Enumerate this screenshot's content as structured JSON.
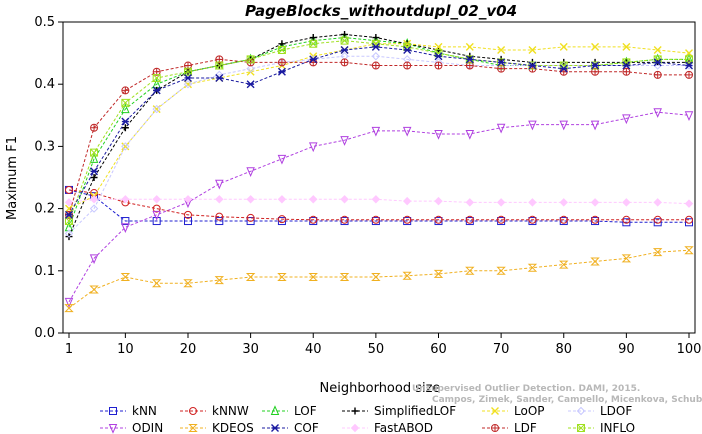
{
  "chart_data": {
    "type": "line",
    "title": "PageBlocks_withoutdupl_02_v04",
    "xlabel": "Neighborhood size",
    "ylabel": "Maximum F1",
    "xlim": [
      1,
      100
    ],
    "ylim": [
      0.0,
      0.5
    ],
    "x_ticks": [
      "1",
      "10",
      "20",
      "30",
      "40",
      "50",
      "60",
      "70",
      "80",
      "90",
      "100"
    ],
    "y_ticks": [
      "0.0",
      "0.1",
      "0.2",
      "0.3",
      "0.4",
      "0.5"
    ],
    "x": [
      1,
      5,
      10,
      15,
      20,
      25,
      30,
      35,
      40,
      45,
      50,
      55,
      60,
      65,
      70,
      75,
      80,
      85,
      90,
      95,
      100
    ],
    "series": [
      {
        "name": "kNN",
        "color": "#1f1fd0",
        "marker": "square",
        "values": [
          0.23,
          0.22,
          0.18,
          0.18,
          0.18,
          0.18,
          0.18,
          0.18,
          0.18,
          0.18,
          0.18,
          0.18,
          0.18,
          0.18,
          0.18,
          0.18,
          0.18,
          0.18,
          0.178,
          0.178,
          0.178
        ]
      },
      {
        "name": "kNNW",
        "color": "#d02020",
        "marker": "circle",
        "values": [
          0.23,
          0.225,
          0.21,
          0.2,
          0.19,
          0.187,
          0.185,
          0.183,
          0.182,
          0.182,
          0.182,
          0.182,
          0.182,
          0.182,
          0.182,
          0.182,
          0.182,
          0.182,
          0.182,
          0.182,
          0.182
        ]
      },
      {
        "name": "LOF",
        "color": "#20d020",
        "marker": "triangle",
        "values": [
          0.17,
          0.28,
          0.36,
          0.4,
          0.42,
          0.43,
          0.44,
          0.46,
          0.47,
          0.475,
          0.47,
          0.465,
          0.45,
          0.44,
          0.43,
          0.43,
          0.43,
          0.43,
          0.435,
          0.44,
          0.44
        ]
      },
      {
        "name": "SimplifiedLOF",
        "color": "#000000",
        "marker": "plus",
        "values": [
          0.155,
          0.25,
          0.33,
          0.39,
          0.42,
          0.43,
          0.44,
          0.465,
          0.475,
          0.48,
          0.475,
          0.465,
          0.455,
          0.445,
          0.44,
          0.435,
          0.435,
          0.435,
          0.435,
          0.435,
          0.435
        ]
      },
      {
        "name": "LoOP",
        "color": "#f0e020",
        "marker": "x",
        "values": [
          0.2,
          0.22,
          0.3,
          0.36,
          0.4,
          0.41,
          0.42,
          0.43,
          0.445,
          0.455,
          0.465,
          0.465,
          0.46,
          0.46,
          0.455,
          0.455,
          0.46,
          0.46,
          0.46,
          0.455,
          0.45
        ]
      },
      {
        "name": "LDOF",
        "color": "#c8c8ff",
        "marker": "diamond",
        "values": [
          0.16,
          0.2,
          0.3,
          0.36,
          0.4,
          0.415,
          0.425,
          0.435,
          0.44,
          0.445,
          0.445,
          0.44,
          0.435,
          0.43,
          0.43,
          0.43,
          0.43,
          0.43,
          0.43,
          0.43,
          0.43
        ]
      },
      {
        "name": "ODIN",
        "color": "#b040e0",
        "marker": "triangle-down",
        "values": [
          0.05,
          0.12,
          0.17,
          0.19,
          0.21,
          0.24,
          0.26,
          0.28,
          0.3,
          0.31,
          0.325,
          0.325,
          0.32,
          0.32,
          0.33,
          0.335,
          0.335,
          0.335,
          0.345,
          0.355,
          0.35
        ]
      },
      {
        "name": "KDEOS",
        "color": "#f0b020",
        "marker": "hourglass",
        "values": [
          0.04,
          0.07,
          0.09,
          0.08,
          0.08,
          0.085,
          0.09,
          0.09,
          0.09,
          0.09,
          0.09,
          0.092,
          0.095,
          0.1,
          0.1,
          0.105,
          0.11,
          0.115,
          0.12,
          0.13,
          0.133
        ]
      },
      {
        "name": "FastABOD",
        "color": "#ffc8ff",
        "marker": "diamond-filled",
        "values": [
          0.21,
          0.215,
          0.215,
          0.215,
          0.215,
          0.215,
          0.215,
          0.215,
          0.215,
          0.215,
          0.215,
          0.212,
          0.212,
          0.21,
          0.21,
          0.21,
          0.21,
          0.21,
          0.21,
          0.21,
          0.208
        ]
      },
      {
        "name": "LDF",
        "color": "#c02828",
        "marker": "circle-plus",
        "values": [
          0.19,
          0.33,
          0.39,
          0.42,
          0.43,
          0.44,
          0.435,
          0.435,
          0.435,
          0.435,
          0.43,
          0.43,
          0.43,
          0.43,
          0.425,
          0.425,
          0.42,
          0.42,
          0.42,
          0.415,
          0.415
        ]
      },
      {
        "name": "INFLO",
        "color": "#a0e020",
        "marker": "square-x",
        "values": [
          0.18,
          0.29,
          0.37,
          0.41,
          0.42,
          0.43,
          0.44,
          0.455,
          0.465,
          0.47,
          0.465,
          0.46,
          0.45,
          0.44,
          0.435,
          0.43,
          0.43,
          0.43,
          0.435,
          0.44,
          0.44
        ]
      }
    ],
    "legend_rows": [
      [
        "kNN",
        "kNNW",
        "LOF",
        "SimplifiedLOF",
        "LoOP",
        "LDOF"
      ],
      [
        "ODIN",
        "KDEOS",
        "COF",
        "FastABOD",
        "LDF",
        "INFLO"
      ]
    ],
    "extra_series_COF": {
      "name": "COF",
      "color": "#1a1aa0",
      "marker": "asterisk",
      "values": [
        0.19,
        0.26,
        0.34,
        0.39,
        0.41,
        0.41,
        0.4,
        0.42,
        0.44,
        0.455,
        0.46,
        0.455,
        0.445,
        0.44,
        0.435,
        0.43,
        0.425,
        0.43,
        0.43,
        0.435,
        0.43
      ]
    },
    "legend_position": "bottom",
    "grid": false
  },
  "watermark": {
    "line1": "Unsupervised Outlier Detection. DAMI, 2015.",
    "line2": "Campos, Zimek, Sander, Campello, Micenkova, Schubert, Assent, Houle"
  }
}
